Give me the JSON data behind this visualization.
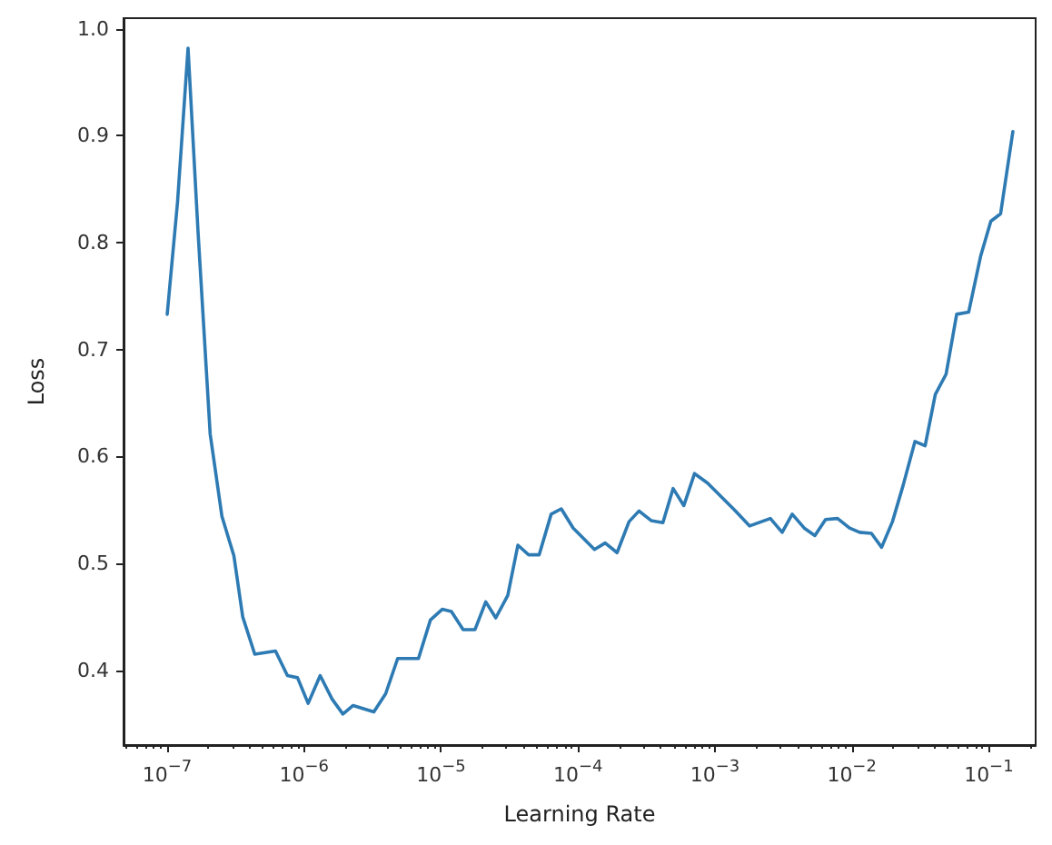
{
  "chart_data": {
    "type": "line",
    "xlabel": "Learning Rate",
    "ylabel": "Loss",
    "log": "x",
    "grid": false,
    "marker": "none",
    "line_style": "solid",
    "xlim": [
      4.8e-08,
      0.22
    ],
    "ylim": [
      0.33,
      1.01
    ],
    "xticks": [
      {
        "value": 1e-07,
        "label": "10$^{−7}$"
      },
      {
        "value": 1e-06,
        "label": "10$^{−6}$"
      },
      {
        "value": 1e-05,
        "label": "10$^{−5}$"
      },
      {
        "value": 0.0001,
        "label": "10$^{−4}$"
      },
      {
        "value": 0.001,
        "label": "10$^{−3}$"
      },
      {
        "value": 0.01,
        "label": "10$^{−2}$"
      },
      {
        "value": 0.1,
        "label": "10$^{−1}$"
      }
    ],
    "yticks": [
      0.4,
      0.5,
      0.6,
      0.7,
      0.8,
      0.9,
      {
        "value": 1,
        "label": "1.0"
      }
    ],
    "series": [
      {
        "color": "#2e7bb4",
        "x": [
          1e-07,
          1.19e-07,
          1.42e-07,
          1.68e-07,
          2.06e-07,
          2.51e-07,
          3.07e-07,
          3.56e-07,
          4.36e-07,
          6.18e-07,
          7.55e-07,
          8.95e-07,
          1.07e-06,
          1.31e-06,
          1.6e-06,
          1.92e-06,
          2.28e-06,
          3.23e-06,
          3.94e-06,
          4.82e-06,
          6.84e-06,
          8.36e-06,
          1.02e-05,
          1.19e-05,
          1.45e-05,
          1.77e-05,
          2.12e-05,
          2.51e-05,
          3.07e-05,
          3.64e-05,
          4.36e-05,
          5.21e-05,
          6.37e-05,
          7.55e-05,
          9.23e-05,
          0.000132,
          0.000158,
          0.000193,
          0.000236,
          0.000279,
          0.000342,
          0.000417,
          0.000495,
          0.000593,
          0.00071,
          0.000885,
          0.00108,
          0.00139,
          0.00179,
          0.00254,
          0.0031,
          0.00367,
          0.00449,
          0.00537,
          0.00643,
          0.00787,
          0.00962,
          0.0114,
          0.0139,
          0.0165,
          0.0198,
          0.0237,
          0.0289,
          0.0343,
          0.0407,
          0.0488,
          0.0583,
          0.0713,
          0.0871,
          0.1035,
          0.122,
          0.15
        ],
        "values": [
          0.733,
          0.838,
          0.982,
          0.81,
          0.621,
          0.544,
          0.507,
          0.45,
          0.415,
          0.418,
          0.395,
          0.393,
          0.369,
          0.395,
          0.373,
          0.359,
          0.367,
          0.361,
          0.378,
          0.411,
          0.411,
          0.447,
          0.457,
          0.455,
          0.438,
          0.438,
          0.464,
          0.449,
          0.47,
          0.517,
          0.508,
          0.508,
          0.546,
          0.551,
          0.533,
          0.513,
          0.519,
          0.51,
          0.539,
          0.549,
          0.54,
          0.538,
          0.57,
          0.554,
          0.584,
          0.575,
          0.564,
          0.55,
          0.535,
          0.542,
          0.529,
          0.546,
          0.533,
          0.526,
          0.541,
          0.542,
          0.533,
          0.529,
          0.528,
          0.515,
          0.539,
          0.573,
          0.614,
          0.61,
          0.658,
          0.677,
          0.733,
          0.735,
          0.787,
          0.82,
          0.827,
          0.904
        ]
      }
    ]
  }
}
